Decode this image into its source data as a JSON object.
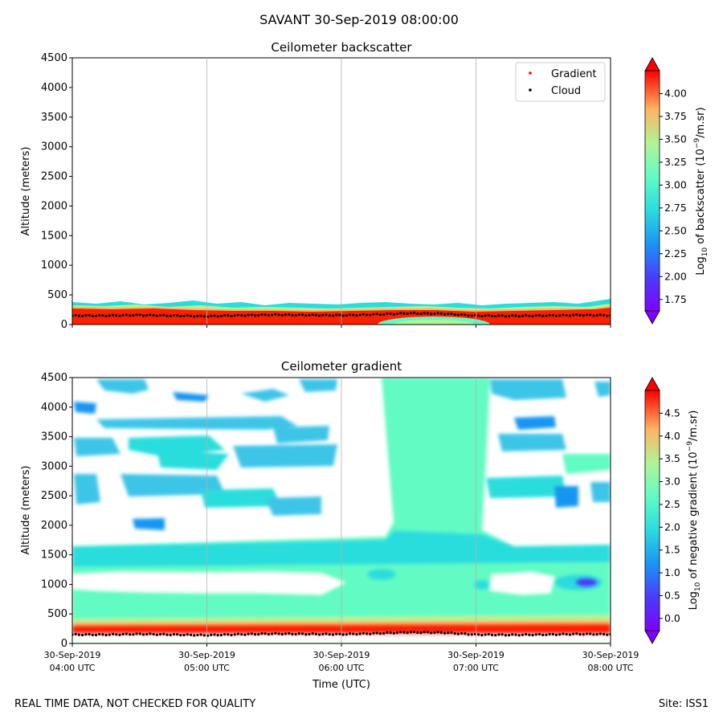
{
  "figure": {
    "suptitle": "SAVANT 30-Sep-2019 08:00:00",
    "footer_left": "REAL TIME DATA, NOT CHECKED FOR QUALITY",
    "footer_right": "Site: ISS1"
  },
  "chart_data": [
    {
      "type": "heatmap",
      "title": "Ceilometer backscatter",
      "xlabel": "",
      "ylabel": "Altitude (meters)",
      "ylim": [
        0,
        4500
      ],
      "y_ticks": [
        "0",
        "500",
        "1000",
        "1500",
        "2000",
        "2500",
        "3000",
        "3500",
        "4000",
        "4500"
      ],
      "x_ticks": [
        "04:00",
        "05:00",
        "06:00",
        "07:00",
        "08:00"
      ],
      "grid": "vertical",
      "colorbar": {
        "label_prefix": "Log",
        "label_sub": "10",
        "label_mid": " of backscatter (10",
        "label_sup": "−9",
        "label_suffix": "/m.sr)",
        "range": [
          1.625,
          4.25
        ],
        "ticks": [
          "1.75",
          "2.00",
          "2.25",
          "2.50",
          "2.75",
          "3.00",
          "3.25",
          "3.50",
          "3.75",
          "4.00"
        ],
        "colormap": "rainbow",
        "extend": "both"
      },
      "legend": {
        "position": "top-right",
        "entries": [
          {
            "label": "Gradient",
            "color": "#ff0000"
          },
          {
            "label": "Cloud",
            "color": "#000000"
          }
        ]
      },
      "series": [
        {
          "name": "Cloud",
          "kind": "points",
          "color": "#000000",
          "x_hours": [
            4.0,
            4.25,
            4.5,
            4.75,
            5.0,
            5.25,
            5.5,
            5.75,
            6.0,
            6.25,
            6.5,
            6.75,
            7.0,
            7.25,
            7.5,
            7.75,
            8.0
          ],
          "y_meters": [
            150,
            150,
            160,
            150,
            140,
            155,
            165,
            160,
            155,
            170,
            190,
            185,
            150,
            145,
            150,
            160,
            155
          ]
        }
      ],
      "layers": [
        {
          "from_m": 0,
          "to_m": 350,
          "value": "high (red, ~4.0)"
        },
        {
          "from_m": 300,
          "to_m": 400,
          "value": "mid (green-cyan fringe, ~2.5-3.0)"
        }
      ]
    },
    {
      "type": "heatmap",
      "title": "Ceilometer gradient",
      "xlabel": "Time (UTC)",
      "ylabel": "Altitude (meters)",
      "ylim": [
        0,
        4500
      ],
      "y_ticks": [
        "0",
        "500",
        "1000",
        "1500",
        "2000",
        "2500",
        "3000",
        "3500",
        "4000",
        "4500"
      ],
      "x_ticks": [
        {
          "date": "30-Sep-2019",
          "time": "04:00 UTC"
        },
        {
          "date": "30-Sep-2019",
          "time": "05:00 UTC"
        },
        {
          "date": "30-Sep-2019",
          "time": "06:00 UTC"
        },
        {
          "date": "30-Sep-2019",
          "time": "07:00 UTC"
        },
        {
          "date": "30-Sep-2019",
          "time": "08:00 UTC"
        }
      ],
      "grid": "vertical",
      "colorbar": {
        "label_prefix": "Log",
        "label_sub": "10",
        "label_mid": " of negative gradient (10",
        "label_sup": "−9",
        "label_suffix": "/m.sr)",
        "range": [
          -0.25,
          5.0
        ],
        "ticks": [
          "0.0",
          "0.5",
          "1.0",
          "1.5",
          "2.0",
          "2.5",
          "3.0",
          "3.5",
          "4.0",
          "4.5"
        ],
        "colormap": "rainbow",
        "extend": "both"
      },
      "series": [
        {
          "name": "Cloud",
          "kind": "points",
          "color": "#000000",
          "x_hours": [
            4.0,
            4.25,
            4.5,
            4.75,
            5.0,
            5.25,
            5.5,
            5.75,
            6.0,
            6.25,
            6.5,
            6.75,
            7.0,
            7.25,
            7.5,
            7.75,
            8.0
          ],
          "y_meters": [
            150,
            150,
            160,
            150,
            140,
            155,
            165,
            160,
            155,
            170,
            190,
            185,
            150,
            145,
            150,
            160,
            155
          ]
        }
      ],
      "regions": [
        {
          "name": "near-surface",
          "x_hours": [
            4.0,
            8.0
          ],
          "y_m": [
            100,
            450
          ],
          "level": 4.0
        },
        {
          "name": "lower-layer",
          "x_hours": [
            4.0,
            8.0
          ],
          "y_m": [
            450,
            900
          ],
          "level": 2.0
        },
        {
          "name": "middle-layer",
          "x_hours": [
            4.0,
            8.0
          ],
          "y_m": [
            1050,
            1650
          ],
          "level": 1.8
        },
        {
          "name": "column",
          "x_hours": [
            6.3,
            7.1
          ],
          "y_m": [
            900,
            4500
          ],
          "level": 2.0
        },
        {
          "name": "aloft-patches",
          "x_hours": [
            4.0,
            8.0
          ],
          "y_m": [
            2300,
            4500
          ],
          "level": 1.3
        }
      ]
    }
  ]
}
